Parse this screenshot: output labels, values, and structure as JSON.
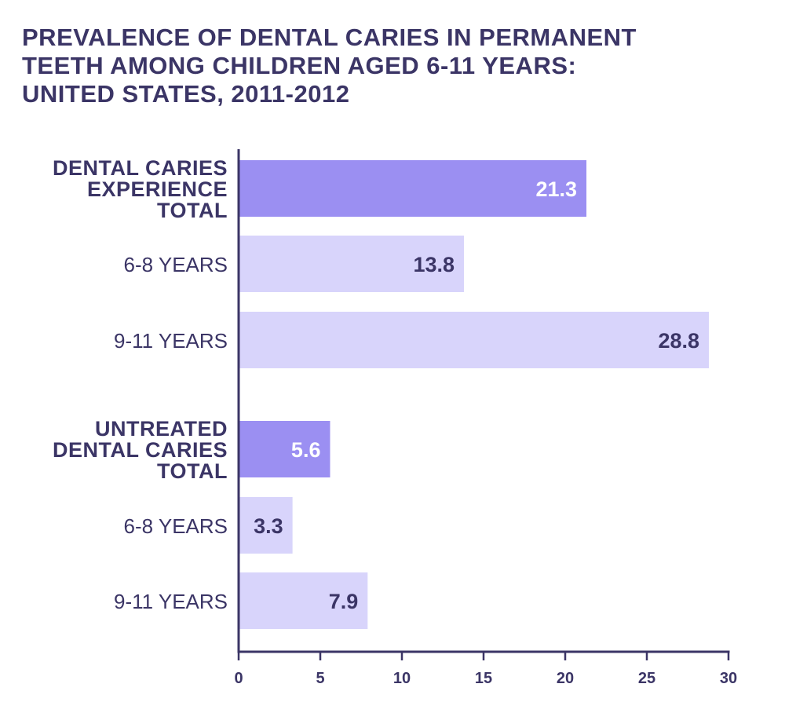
{
  "chart_data": {
    "type": "bar",
    "orientation": "horizontal",
    "title_lines": [
      "PREVALENCE OF DENTAL CARIES IN PERMANENT",
      "TEETH AMONG CHILDREN AGED 6-11 YEARS:",
      "UNITED STATES, 2011-2012"
    ],
    "categories": [
      {
        "label_lines": [
          "DENTAL CARIES",
          "EXPERIENCE",
          "TOTAL"
        ],
        "value": 21.3,
        "value_label": "21.3",
        "kind": "total"
      },
      {
        "label_lines": [
          "6-8 YEARS"
        ],
        "value": 13.8,
        "value_label": "13.8",
        "kind": "sub"
      },
      {
        "label_lines": [
          "9-11 YEARS"
        ],
        "value": 28.8,
        "value_label": "28.8",
        "kind": "sub"
      },
      {
        "label_lines": [
          "UNTREATED",
          "DENTAL CARIES",
          "TOTAL"
        ],
        "value": 5.6,
        "value_label": "5.6",
        "kind": "total"
      },
      {
        "label_lines": [
          "6-8 YEARS"
        ],
        "value": 3.3,
        "value_label": "3.3",
        "kind": "sub"
      },
      {
        "label_lines": [
          "9-11 YEARS"
        ],
        "value": 7.9,
        "value_label": "7.9",
        "kind": "sub"
      }
    ],
    "xlim": [
      0,
      30
    ],
    "xticks": [
      0,
      5,
      10,
      15,
      20,
      25,
      30
    ],
    "xlabel": "",
    "ylabel": "",
    "grid": false,
    "colors": {
      "total_bar": "#9b8ff2",
      "sub_bar": "#d8d4fb",
      "text": "#3b3566",
      "total_value_text": "#ffffff",
      "sub_value_text": "#3b3566",
      "axis": "#3b3566"
    }
  }
}
